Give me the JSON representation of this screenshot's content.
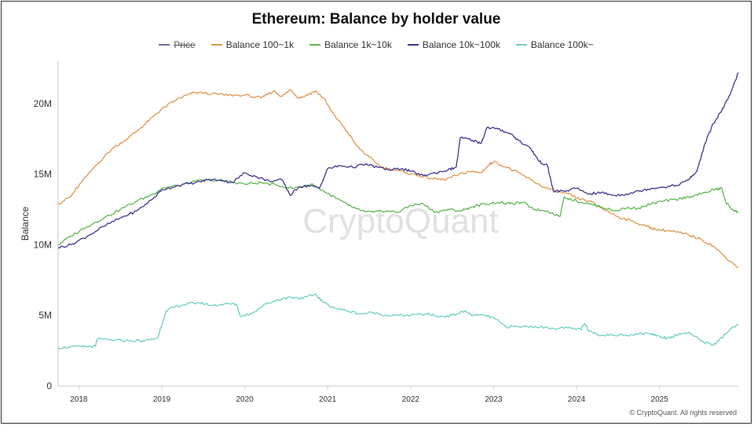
{
  "chart_data": {
    "type": "line",
    "title": "Ethereum: Balance by holder value",
    "ylabel": "Balance",
    "xlabel": "",
    "watermark": "CryptoQuant",
    "footer": "© CryptoQuant. All rights reserved",
    "ylim": [
      0,
      23000000
    ],
    "xlim": [
      2017.75,
      2025.95
    ],
    "y_ticks": [
      {
        "value": 0,
        "label": "0"
      },
      {
        "value": 5000000,
        "label": "5M"
      },
      {
        "value": 10000000,
        "label": "10M"
      },
      {
        "value": 15000000,
        "label": "15M"
      },
      {
        "value": 20000000,
        "label": "20M"
      }
    ],
    "x_ticks": [
      {
        "value": 2018,
        "label": "2018"
      },
      {
        "value": 2019,
        "label": "2019"
      },
      {
        "value": 2020,
        "label": "2020"
      },
      {
        "value": 2021,
        "label": "2021"
      },
      {
        "value": 2022,
        "label": "2022"
      },
      {
        "value": 2023,
        "label": "2023"
      },
      {
        "value": 2024,
        "label": "2024"
      },
      {
        "value": 2025,
        "label": "2025"
      }
    ],
    "grid": false,
    "legend_position": "top-center",
    "series": [
      {
        "name": "Price",
        "color": "#6b6f9e",
        "hidden": true,
        "points": []
      },
      {
        "name": "Balance 100~1k",
        "color": "#e0954d",
        "points": [
          [
            2017.75,
            12.9
          ],
          [
            2017.9,
            13.4
          ],
          [
            2018.0,
            14.2
          ],
          [
            2018.2,
            15.6
          ],
          [
            2018.4,
            16.8
          ],
          [
            2018.6,
            17.6
          ],
          [
            2018.75,
            18.3
          ],
          [
            2018.9,
            19.1
          ],
          [
            2019.0,
            19.6
          ],
          [
            2019.15,
            20.2
          ],
          [
            2019.3,
            20.6
          ],
          [
            2019.4,
            20.8
          ],
          [
            2019.6,
            20.7
          ],
          [
            2019.8,
            20.6
          ],
          [
            2020.0,
            20.6
          ],
          [
            2020.2,
            20.4
          ],
          [
            2020.35,
            20.9
          ],
          [
            2020.45,
            20.5
          ],
          [
            2020.55,
            21.0
          ],
          [
            2020.65,
            20.4
          ],
          [
            2020.75,
            20.6
          ],
          [
            2020.85,
            20.9
          ],
          [
            2020.95,
            20.4
          ],
          [
            2021.05,
            19.4
          ],
          [
            2021.2,
            18.3
          ],
          [
            2021.35,
            17.0
          ],
          [
            2021.5,
            16.2
          ],
          [
            2021.65,
            15.5
          ],
          [
            2021.8,
            15.3
          ],
          [
            2021.95,
            15.1
          ],
          [
            2022.1,
            14.9
          ],
          [
            2022.25,
            14.7
          ],
          [
            2022.4,
            14.6
          ],
          [
            2022.55,
            14.9
          ],
          [
            2022.7,
            15.2
          ],
          [
            2022.85,
            15.1
          ],
          [
            2022.95,
            15.7
          ],
          [
            2023.0,
            15.9
          ],
          [
            2023.15,
            15.5
          ],
          [
            2023.3,
            15.1
          ],
          [
            2023.45,
            14.6
          ],
          [
            2023.6,
            14.1
          ],
          [
            2023.75,
            13.8
          ],
          [
            2023.9,
            13.6
          ],
          [
            2024.0,
            13.3
          ],
          [
            2024.15,
            13.1
          ],
          [
            2024.3,
            12.6
          ],
          [
            2024.5,
            12.0
          ],
          [
            2024.7,
            11.6
          ],
          [
            2024.85,
            11.3
          ],
          [
            2024.95,
            11.1
          ],
          [
            2025.1,
            11.0
          ],
          [
            2025.2,
            10.9
          ],
          [
            2025.35,
            10.7
          ],
          [
            2025.5,
            10.4
          ],
          [
            2025.65,
            9.9
          ],
          [
            2025.8,
            9.1
          ],
          [
            2025.95,
            8.4
          ]
        ]
      },
      {
        "name": "Balance 1k~10k",
        "color": "#5db84f",
        "points": [
          [
            2017.75,
            10.0
          ],
          [
            2017.9,
            10.6
          ],
          [
            2018.1,
            11.3
          ],
          [
            2018.3,
            11.9
          ],
          [
            2018.5,
            12.5
          ],
          [
            2018.7,
            13.1
          ],
          [
            2018.9,
            13.6
          ],
          [
            2019.0,
            14.0
          ],
          [
            2019.2,
            14.2
          ],
          [
            2019.4,
            14.5
          ],
          [
            2019.6,
            14.6
          ],
          [
            2019.8,
            14.5
          ],
          [
            2020.0,
            14.3
          ],
          [
            2020.2,
            14.4
          ],
          [
            2020.4,
            14.2
          ],
          [
            2020.6,
            14.0
          ],
          [
            2020.8,
            14.3
          ],
          [
            2020.95,
            13.8
          ],
          [
            2021.1,
            13.3
          ],
          [
            2021.25,
            12.8
          ],
          [
            2021.4,
            12.4
          ],
          [
            2021.55,
            12.3
          ],
          [
            2021.7,
            12.4
          ],
          [
            2021.85,
            12.3
          ],
          [
            2022.0,
            12.8
          ],
          [
            2022.15,
            12.9
          ],
          [
            2022.3,
            12.3
          ],
          [
            2022.45,
            12.5
          ],
          [
            2022.6,
            12.4
          ],
          [
            2022.75,
            12.7
          ],
          [
            2022.9,
            12.9
          ],
          [
            2023.05,
            13.0
          ],
          [
            2023.2,
            12.9
          ],
          [
            2023.35,
            13.0
          ],
          [
            2023.5,
            12.5
          ],
          [
            2023.65,
            12.4
          ],
          [
            2023.8,
            12.0
          ],
          [
            2023.85,
            13.4
          ],
          [
            2024.0,
            13.1
          ],
          [
            2024.15,
            12.9
          ],
          [
            2024.3,
            12.7
          ],
          [
            2024.45,
            12.4
          ],
          [
            2024.6,
            12.6
          ],
          [
            2024.75,
            12.6
          ],
          [
            2024.9,
            12.9
          ],
          [
            2025.05,
            13.1
          ],
          [
            2025.2,
            13.2
          ],
          [
            2025.35,
            13.4
          ],
          [
            2025.5,
            13.6
          ],
          [
            2025.65,
            13.9
          ],
          [
            2025.75,
            14.0
          ],
          [
            2025.8,
            13.0
          ],
          [
            2025.88,
            12.5
          ],
          [
            2025.95,
            12.3
          ]
        ]
      },
      {
        "name": "Balance 10k~100k",
        "color": "#3f3593",
        "points": [
          [
            2017.75,
            9.8
          ],
          [
            2017.9,
            10.0
          ],
          [
            2018.1,
            10.6
          ],
          [
            2018.3,
            11.3
          ],
          [
            2018.5,
            11.9
          ],
          [
            2018.7,
            12.4
          ],
          [
            2018.9,
            13.3
          ],
          [
            2019.0,
            13.9
          ],
          [
            2019.2,
            14.2
          ],
          [
            2019.4,
            14.4
          ],
          [
            2019.55,
            14.6
          ],
          [
            2019.7,
            14.6
          ],
          [
            2019.85,
            14.4
          ],
          [
            2020.0,
            15.1
          ],
          [
            2020.15,
            14.8
          ],
          [
            2020.3,
            14.5
          ],
          [
            2020.45,
            14.6
          ],
          [
            2020.55,
            13.5
          ],
          [
            2020.65,
            14.1
          ],
          [
            2020.8,
            14.2
          ],
          [
            2020.9,
            14.0
          ],
          [
            2021.0,
            15.4
          ],
          [
            2021.15,
            15.6
          ],
          [
            2021.3,
            15.5
          ],
          [
            2021.45,
            15.7
          ],
          [
            2021.6,
            15.5
          ],
          [
            2021.75,
            15.3
          ],
          [
            2021.9,
            15.4
          ],
          [
            2022.0,
            15.2
          ],
          [
            2022.15,
            14.9
          ],
          [
            2022.3,
            15.1
          ],
          [
            2022.45,
            15.3
          ],
          [
            2022.55,
            15.5
          ],
          [
            2022.6,
            17.6
          ],
          [
            2022.75,
            17.4
          ],
          [
            2022.85,
            17.2
          ],
          [
            2022.92,
            18.3
          ],
          [
            2023.05,
            18.2
          ],
          [
            2023.2,
            17.9
          ],
          [
            2023.3,
            17.4
          ],
          [
            2023.45,
            16.8
          ],
          [
            2023.55,
            15.9
          ],
          [
            2023.65,
            15.6
          ],
          [
            2023.72,
            13.8
          ],
          [
            2023.85,
            13.8
          ],
          [
            2024.0,
            14.0
          ],
          [
            2024.15,
            13.6
          ],
          [
            2024.3,
            13.7
          ],
          [
            2024.45,
            13.5
          ],
          [
            2024.6,
            13.6
          ],
          [
            2024.75,
            13.8
          ],
          [
            2024.9,
            14.0
          ],
          [
            2025.05,
            14.1
          ],
          [
            2025.2,
            14.2
          ],
          [
            2025.35,
            14.6
          ],
          [
            2025.45,
            15.2
          ],
          [
            2025.55,
            17.2
          ],
          [
            2025.65,
            18.6
          ],
          [
            2025.75,
            19.5
          ],
          [
            2025.85,
            20.6
          ],
          [
            2025.95,
            22.2
          ]
        ]
      },
      {
        "name": "Balance 100k~",
        "color": "#6fcfc3",
        "points": [
          [
            2017.75,
            2.7
          ],
          [
            2017.9,
            2.75
          ],
          [
            2018.1,
            2.8
          ],
          [
            2018.2,
            2.8
          ],
          [
            2018.22,
            3.3
          ],
          [
            2018.4,
            3.25
          ],
          [
            2018.6,
            3.2
          ],
          [
            2018.8,
            3.2
          ],
          [
            2018.95,
            3.4
          ],
          [
            2019.05,
            5.3
          ],
          [
            2019.15,
            5.6
          ],
          [
            2019.3,
            5.8
          ],
          [
            2019.45,
            5.9
          ],
          [
            2019.6,
            5.7
          ],
          [
            2019.75,
            5.8
          ],
          [
            2019.9,
            5.8
          ],
          [
            2019.95,
            4.9
          ],
          [
            2020.1,
            5.2
          ],
          [
            2020.25,
            5.8
          ],
          [
            2020.4,
            6.1
          ],
          [
            2020.55,
            6.3
          ],
          [
            2020.7,
            6.2
          ],
          [
            2020.85,
            6.5
          ],
          [
            2020.95,
            5.9
          ],
          [
            2021.1,
            5.5
          ],
          [
            2021.25,
            5.3
          ],
          [
            2021.4,
            5.1
          ],
          [
            2021.55,
            5.2
          ],
          [
            2021.7,
            5.0
          ],
          [
            2021.85,
            5.0
          ],
          [
            2022.0,
            5.0
          ],
          [
            2022.2,
            5.1
          ],
          [
            2022.35,
            4.9
          ],
          [
            2022.5,
            5.0
          ],
          [
            2022.65,
            5.3
          ],
          [
            2022.75,
            5.0
          ],
          [
            2022.9,
            5.0
          ],
          [
            2023.0,
            4.8
          ],
          [
            2023.15,
            4.2
          ],
          [
            2023.3,
            4.2
          ],
          [
            2023.5,
            4.2
          ],
          [
            2023.7,
            4.1
          ],
          [
            2023.9,
            4.1
          ],
          [
            2024.05,
            4.0
          ],
          [
            2024.1,
            4.4
          ],
          [
            2024.15,
            3.9
          ],
          [
            2024.3,
            3.6
          ],
          [
            2024.45,
            3.6
          ],
          [
            2024.6,
            3.6
          ],
          [
            2024.75,
            3.7
          ],
          [
            2024.9,
            3.7
          ],
          [
            2025.0,
            3.5
          ],
          [
            2025.1,
            3.4
          ],
          [
            2025.2,
            3.6
          ],
          [
            2025.35,
            3.8
          ],
          [
            2025.5,
            3.2
          ],
          [
            2025.65,
            2.9
          ],
          [
            2025.75,
            3.4
          ],
          [
            2025.85,
            4.0
          ],
          [
            2025.95,
            4.3
          ]
        ]
      }
    ]
  }
}
